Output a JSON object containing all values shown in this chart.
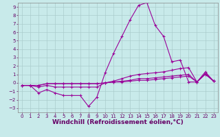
{
  "xlabel": "Windchill (Refroidissement éolien,°C)",
  "bg_color": "#c8eaea",
  "line_color": "#990099",
  "grid_color": "#aacccc",
  "xlim": [
    -0.5,
    23.5
  ],
  "ylim": [
    -3.5,
    9.5
  ],
  "xticks": [
    0,
    1,
    2,
    3,
    4,
    5,
    6,
    7,
    8,
    9,
    10,
    11,
    12,
    13,
    14,
    15,
    16,
    17,
    18,
    19,
    20,
    21,
    22,
    23
  ],
  "yticks": [
    -3,
    -2,
    -1,
    0,
    1,
    2,
    3,
    4,
    5,
    6,
    7,
    8,
    9
  ],
  "lines": [
    {
      "x": [
        0,
        1,
        2,
        3,
        4,
        5,
        6,
        7,
        8,
        9,
        10,
        11,
        12,
        13,
        14,
        15,
        16,
        17,
        18,
        19,
        20,
        21,
        22,
        23
      ],
      "y": [
        -0.3,
        -0.3,
        -1.2,
        -0.8,
        -1.2,
        -1.5,
        -1.5,
        -1.5,
        -2.8,
        -1.7,
        1.2,
        3.5,
        5.5,
        7.5,
        9.2,
        9.5,
        6.8,
        5.5,
        2.5,
        2.7,
        0.1,
        0.1,
        1.1,
        0.2
      ]
    },
    {
      "x": [
        0,
        1,
        2,
        3,
        4,
        5,
        6,
        7,
        8,
        9,
        10,
        11,
        12,
        13,
        14,
        15,
        16,
        17,
        18,
        19,
        20,
        21,
        22,
        23
      ],
      "y": [
        -0.3,
        -0.3,
        -0.5,
        -0.3,
        -0.5,
        -0.5,
        -0.5,
        -0.5,
        -0.5,
        -0.5,
        0.0,
        0.2,
        0.5,
        0.8,
        1.0,
        1.1,
        1.2,
        1.3,
        1.5,
        1.7,
        1.8,
        0.1,
        1.3,
        0.2
      ]
    },
    {
      "x": [
        0,
        1,
        2,
        3,
        4,
        5,
        6,
        7,
        8,
        9,
        10,
        11,
        12,
        13,
        14,
        15,
        16,
        17,
        18,
        19,
        20,
        21,
        22,
        23
      ],
      "y": [
        -0.3,
        -0.3,
        -0.3,
        -0.1,
        -0.1,
        -0.1,
        -0.1,
        -0.1,
        -0.1,
        -0.1,
        0.0,
        0.1,
        0.2,
        0.3,
        0.5,
        0.5,
        0.6,
        0.7,
        0.8,
        0.9,
        1.0,
        0.1,
        1.1,
        0.2
      ]
    },
    {
      "x": [
        0,
        1,
        2,
        3,
        4,
        5,
        6,
        7,
        8,
        9,
        10,
        11,
        12,
        13,
        14,
        15,
        16,
        17,
        18,
        19,
        20,
        21,
        22,
        23
      ],
      "y": [
        -0.3,
        -0.3,
        -0.3,
        -0.1,
        -0.1,
        -0.1,
        -0.1,
        -0.1,
        -0.1,
        -0.1,
        0.0,
        0.1,
        0.1,
        0.2,
        0.3,
        0.3,
        0.4,
        0.5,
        0.6,
        0.7,
        0.8,
        0.1,
        1.0,
        0.2
      ]
    }
  ],
  "marker": "+",
  "markersize": 3,
  "linewidth": 0.8,
  "tick_fontsize": 5,
  "xlabel_fontsize": 6.5
}
